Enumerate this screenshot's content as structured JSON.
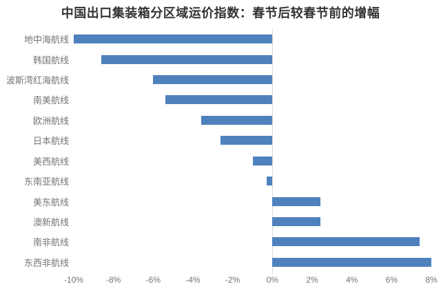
{
  "chart_data": {
    "type": "bar",
    "orientation": "horizontal",
    "title": "中国出口集装箱分区域运价指数：春节后较春节前的增幅",
    "categories": [
      "地中海航线",
      "韩国航线",
      "波斯湾红海航线",
      "南美航线",
      "欧洲航线",
      "日本航线",
      "美西航线",
      "东南亚航线",
      "美东航线",
      "澳新航线",
      "南非航线",
      "东西非航线"
    ],
    "values": [
      -10.0,
      -8.6,
      -6.0,
      -5.4,
      -3.6,
      -2.6,
      -1.0,
      -0.3,
      2.4,
      2.4,
      7.4,
      8.0
    ],
    "unit": "%",
    "xlim": [
      -10,
      8
    ],
    "tick_step": 2,
    "tick_labels": [
      "-10%",
      "-8%",
      "-6%",
      "-4%",
      "-2%",
      "0%",
      "2%",
      "4%",
      "6%",
      "8%"
    ],
    "bar_color": "#4f81bd",
    "axis_line_color": "#d9d9d9",
    "title_color": "#333333",
    "label_color": "#737373",
    "legend": "none",
    "grid": "off"
  }
}
